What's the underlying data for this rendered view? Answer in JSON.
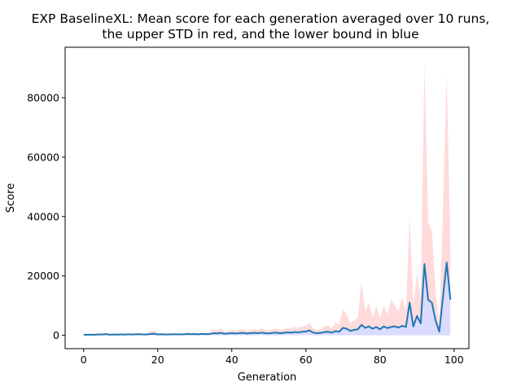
{
  "chart_data": {
    "type": "line",
    "title": "EXP BaselineXL: Mean score for each generation averaged over 10 runs,\nthe upper STD in red, and the lower bound in blue",
    "xlabel": "Generation",
    "ylabel": "Score",
    "xlim": [
      -5,
      104
    ],
    "ylim": [
      -4500,
      97000
    ],
    "xticks": [
      0,
      20,
      40,
      60,
      80,
      100
    ],
    "yticks": [
      0,
      20000,
      40000,
      60000,
      80000
    ],
    "grid": false,
    "series": [
      {
        "role": "mean",
        "color": "#1f77b4",
        "x": [
          0,
          1,
          2,
          3,
          4,
          5,
          6,
          7,
          8,
          9,
          10,
          11,
          12,
          13,
          14,
          15,
          16,
          17,
          18,
          19,
          20,
          21,
          22,
          23,
          24,
          25,
          26,
          27,
          28,
          29,
          30,
          31,
          32,
          33,
          34,
          35,
          36,
          37,
          38,
          39,
          40,
          41,
          42,
          43,
          44,
          45,
          46,
          47,
          48,
          49,
          50,
          51,
          52,
          53,
          54,
          55,
          56,
          57,
          58,
          59,
          60,
          61,
          62,
          63,
          64,
          65,
          66,
          67,
          68,
          69,
          70,
          71,
          72,
          73,
          74,
          75,
          76,
          77,
          78,
          79,
          80,
          81,
          82,
          83,
          84,
          85,
          86,
          87,
          88,
          89,
          90,
          91,
          92,
          93,
          94,
          95,
          96,
          97,
          98,
          99
        ],
        "y": [
          200,
          150,
          220,
          180,
          300,
          250,
          400,
          200,
          250,
          230,
          300,
          220,
          350,
          260,
          330,
          380,
          300,
          250,
          450,
          500,
          300,
          350,
          280,
          300,
          320,
          350,
          300,
          330,
          450,
          380,
          420,
          350,
          460,
          400,
          420,
          700,
          600,
          800,
          500,
          600,
          700,
          600,
          700,
          800,
          600,
          700,
          800,
          700,
          900,
          700,
          600,
          800,
          900,
          700,
          800,
          1000,
          900,
          1100,
          1000,
          1200,
          1300,
          1600,
          900,
          700,
          800,
          1100,
          1200,
          900,
          1400,
          1200,
          2500,
          2200,
          1500,
          1800,
          2000,
          3500,
          2500,
          3000,
          2200,
          2800,
          2000,
          3000,
          2400,
          2800,
          3000,
          2600,
          3200,
          2800,
          11000,
          3000,
          6500,
          4000,
          24000,
          12000,
          11000,
          5000,
          1200,
          13000,
          24500,
          12000
        ]
      },
      {
        "role": "upper-std",
        "color": "#ff9999",
        "y": [
          400,
          300,
          450,
          350,
          600,
          500,
          800,
          400,
          500,
          450,
          600,
          430,
          700,
          520,
          650,
          750,
          600,
          500,
          1500,
          1600,
          600,
          700,
          550,
          600,
          650,
          700,
          600,
          660,
          900,
          760,
          850,
          700,
          900,
          800,
          850,
          2000,
          1700,
          2300,
          1200,
          1500,
          1800,
          1600,
          1900,
          2100,
          1500,
          1800,
          2100,
          1800,
          2300,
          1800,
          1500,
          2000,
          2300,
          1800,
          2000,
          2500,
          2300,
          2800,
          2500,
          3000,
          3300,
          4000,
          2300,
          1800,
          2000,
          3000,
          3300,
          2400,
          4500,
          3500,
          9000,
          7000,
          4000,
          5000,
          6000,
          18000,
          8000,
          11000,
          6000,
          10000,
          6000,
          10000,
          7000,
          12000,
          10000,
          8000,
          13000,
          8000,
          40000,
          10000,
          21000,
          12000,
          92000,
          38000,
          35000,
          15000,
          3500,
          42000,
          88000,
          30000
        ]
      },
      {
        "role": "lower-bound",
        "color": "#9999ff",
        "y": [
          0,
          0,
          0,
          0,
          0,
          0,
          0,
          0,
          0,
          0,
          0,
          0,
          0,
          0,
          0,
          0,
          0,
          0,
          0,
          0,
          0,
          0,
          0,
          0,
          0,
          0,
          0,
          0,
          0,
          0,
          0,
          0,
          0,
          0,
          0,
          0,
          0,
          0,
          0,
          0,
          0,
          0,
          0,
          0,
          0,
          0,
          0,
          0,
          0,
          0,
          0,
          0,
          0,
          0,
          0,
          0,
          0,
          0,
          0,
          0,
          0,
          0,
          0,
          0,
          0,
          0,
          0,
          0,
          0,
          0,
          0,
          0,
          0,
          0,
          0,
          0,
          0,
          0,
          0,
          0,
          0,
          0,
          0,
          0,
          0,
          0,
          0,
          0,
          0,
          0,
          0,
          0,
          0,
          0,
          0,
          0,
          0,
          0,
          0,
          0
        ]
      }
    ]
  }
}
